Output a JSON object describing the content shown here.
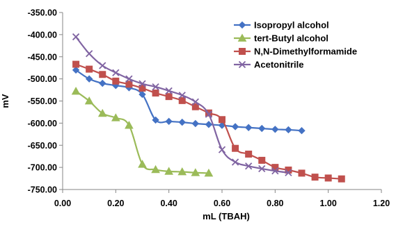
{
  "chart_data": {
    "type": "line",
    "xlabel": "mL (TBAH)",
    "ylabel": "mV",
    "xlim": [
      0,
      1.2
    ],
    "ylim": [
      -750,
      -350
    ],
    "x_ticks": [
      "0.00",
      "0.20",
      "0.40",
      "0.60",
      "0.80",
      "1.00",
      "1.20"
    ],
    "y_ticks": [
      "-350.00",
      "-400.00",
      "-450.00",
      "-500.00",
      "-550.00",
      "-600.00",
      "-650.00",
      "-700.00",
      "-750.00"
    ],
    "grid": false,
    "legend_position": "top-right",
    "series": [
      {
        "name": "Isopropyl alcohol",
        "color": "#4472C4",
        "marker": "diamond",
        "points": [
          [
            0.05,
            -480
          ],
          [
            0.1,
            -500
          ],
          [
            0.15,
            -510
          ],
          [
            0.2,
            -515
          ],
          [
            0.25,
            -520
          ],
          [
            0.3,
            -535
          ],
          [
            0.35,
            -593
          ],
          [
            0.4,
            -596
          ],
          [
            0.45,
            -598
          ],
          [
            0.5,
            -601
          ],
          [
            0.55,
            -603
          ],
          [
            0.6,
            -605
          ],
          [
            0.65,
            -608
          ],
          [
            0.7,
            -610
          ],
          [
            0.75,
            -612
          ],
          [
            0.8,
            -614
          ],
          [
            0.85,
            -615
          ],
          [
            0.9,
            -617
          ]
        ]
      },
      {
        "name": "tert-Butyl alcohol",
        "color": "#9BBB59",
        "marker": "triangle",
        "points": [
          [
            0.05,
            -528
          ],
          [
            0.1,
            -550
          ],
          [
            0.15,
            -578
          ],
          [
            0.2,
            -588
          ],
          [
            0.25,
            -605
          ],
          [
            0.3,
            -693
          ],
          [
            0.35,
            -705
          ],
          [
            0.4,
            -709
          ],
          [
            0.45,
            -710
          ],
          [
            0.5,
            -712
          ],
          [
            0.55,
            -713
          ]
        ]
      },
      {
        "name": "N,N-Dimethylformamide",
        "color": "#C0504D",
        "marker": "square",
        "points": [
          [
            0.05,
            -467
          ],
          [
            0.1,
            -478
          ],
          [
            0.15,
            -490
          ],
          [
            0.2,
            -505
          ],
          [
            0.25,
            -512
          ],
          [
            0.3,
            -521
          ],
          [
            0.35,
            -532
          ],
          [
            0.4,
            -540
          ],
          [
            0.45,
            -549
          ],
          [
            0.5,
            -563
          ],
          [
            0.55,
            -577
          ],
          [
            0.6,
            -592
          ],
          [
            0.65,
            -657
          ],
          [
            0.7,
            -670
          ],
          [
            0.75,
            -684
          ],
          [
            0.8,
            -700
          ],
          [
            0.85,
            -706
          ],
          [
            0.9,
            -713
          ],
          [
            0.95,
            -722
          ],
          [
            1.0,
            -724
          ],
          [
            1.05,
            -726
          ]
        ]
      },
      {
        "name": "Acetonitrile",
        "color": "#8064A2",
        "marker": "x",
        "points": [
          [
            0.05,
            -405
          ],
          [
            0.1,
            -443
          ],
          [
            0.15,
            -470
          ],
          [
            0.2,
            -486
          ],
          [
            0.25,
            -500
          ],
          [
            0.3,
            -511
          ],
          [
            0.35,
            -518
          ],
          [
            0.4,
            -527
          ],
          [
            0.45,
            -537
          ],
          [
            0.5,
            -552
          ],
          [
            0.55,
            -580
          ],
          [
            0.6,
            -660
          ],
          [
            0.65,
            -688
          ],
          [
            0.7,
            -697
          ],
          [
            0.75,
            -703
          ],
          [
            0.8,
            -708
          ],
          [
            0.85,
            -712
          ]
        ]
      }
    ]
  }
}
